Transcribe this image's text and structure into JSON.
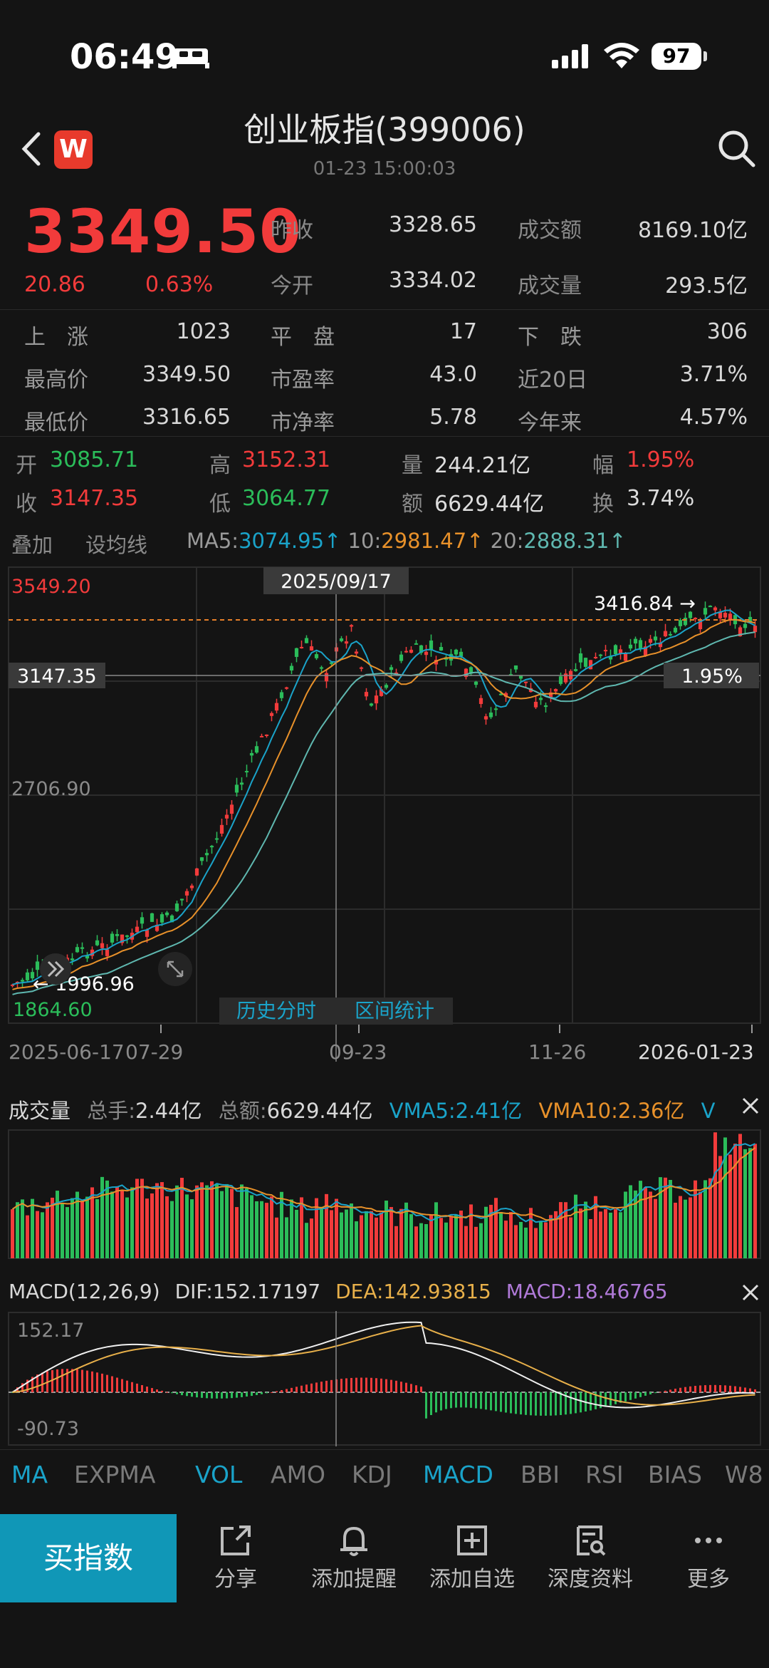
{
  "status_bar": {
    "time": "06:49",
    "battery": "97"
  },
  "header": {
    "title": "创业板指(399006)",
    "subtitle": "01-23 15:00:03",
    "logo": "W"
  },
  "quote": {
    "price": "3349.50",
    "change": "20.86",
    "change_pct": "0.63%",
    "stats": [
      {
        "label": "昨收",
        "value": "3328.65"
      },
      {
        "label": "成交额",
        "value": "8169.10亿"
      },
      {
        "label": "今开",
        "value": "3334.02"
      },
      {
        "label": "成交量",
        "value": "293.5亿"
      }
    ]
  },
  "breadth": {
    "rows": [
      [
        {
          "label": "上　涨",
          "value": "1023"
        },
        {
          "label": "平　盘",
          "value": "17"
        },
        {
          "label": "下　跌",
          "value": "306"
        }
      ],
      [
        {
          "label": "最高价",
          "value": "3349.50"
        },
        {
          "label": "市盈率",
          "value": "43.0"
        },
        {
          "label": "近20日",
          "value": "3.71%"
        }
      ],
      [
        {
          "label": "最低价",
          "value": "3316.65"
        },
        {
          "label": "市净率",
          "value": "5.78"
        },
        {
          "label": "今年来",
          "value": "4.57%"
        }
      ]
    ]
  },
  "candle_info": {
    "open_label": "开",
    "open": "3085.71",
    "high_label": "高",
    "high": "3152.31",
    "vol_label": "量",
    "vol": "244.21亿",
    "amp_label": "幅",
    "amp": "1.95%",
    "close_label": "收",
    "close": "3147.35",
    "low_label": "低",
    "low": "3064.77",
    "amt_label": "额",
    "amt": "6629.44亿",
    "turn_label": "换",
    "turn": "3.74%"
  },
  "ma_bar": {
    "overlay": "叠加",
    "set_ma": "设均线",
    "ma5_label": "MA5:",
    "ma5": "3074.95↑",
    "ma10_label": "10:",
    "ma10": "2981.47↑",
    "ma20_label": "20:",
    "ma20": "2888.31↑"
  },
  "kline": {
    "top_price": "3549.20",
    "mid_price": "2706.90",
    "bottom_price": "1864.60",
    "cursor_date": "2025/09/17",
    "cursor_price": "3147.35",
    "cursor_pct": "1.95%",
    "max_mark": "3416.84 →",
    "min_mark": "← 1996.96",
    "btn_history": "历史分时",
    "btn_range": "区间统计",
    "dates": [
      "2025-06-17",
      "07-29",
      "09-23",
      "11-26",
      "2026-01-23"
    ]
  },
  "volume": {
    "title": "成交量",
    "total_label": "总手:",
    "total": "2.44亿",
    "amount_label": "总额:",
    "amount": "6629.44亿",
    "vma5": "VMA5:2.41亿",
    "vma10": "VMA10:2.36亿",
    "vma_more": "V"
  },
  "macd": {
    "title": "MACD(12,26,9)",
    "dif": "DIF:152.17197",
    "dea": "DEA:142.93815",
    "macd": "MACD:18.46765",
    "top": "152.17",
    "bottom": "-90.73"
  },
  "tabs": [
    "MA",
    "EXPMA",
    "VOL",
    "AMO",
    "KDJ",
    "MACD",
    "BBI",
    "RSI",
    "BIAS",
    "W8"
  ],
  "active_tabs": [
    "MA",
    "VOL",
    "MACD"
  ],
  "bottom_bar": {
    "buy": "买指数",
    "items": [
      "分享",
      "添加提醒",
      "添加自选",
      "深度资料",
      "更多"
    ]
  },
  "colors": {
    "up": "#f23b3b",
    "down": "#2bbd5a",
    "accent": "#1097b7",
    "ma5": "#1aa3c9",
    "ma10": "#e8912a",
    "ma20": "#5fb8b0"
  }
}
